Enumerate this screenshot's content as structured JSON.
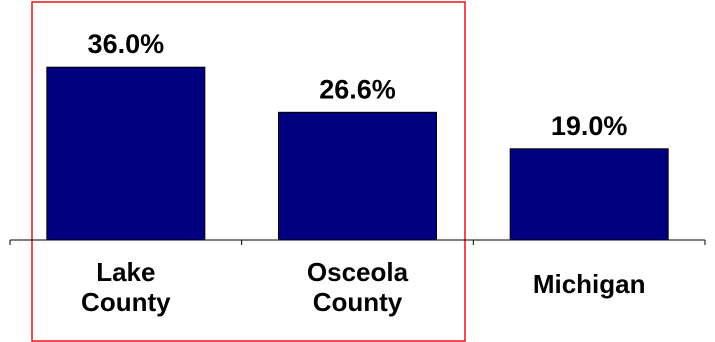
{
  "chart_data": {
    "type": "bar",
    "categories": [
      "Lake County",
      "Osceola County",
      "Michigan"
    ],
    "category_lines": [
      [
        "Lake",
        "County"
      ],
      [
        "Osceola",
        "County"
      ],
      [
        "Michigan"
      ]
    ],
    "values": [
      36.0,
      26.6,
      19.0
    ],
    "value_labels": [
      "36.0%",
      "26.6%",
      "19.0%"
    ],
    "unit": "%",
    "ylim": [
      0,
      50
    ],
    "grid": false,
    "legend": "none",
    "highlighted_categories": [
      "Lake County",
      "Osceola County"
    ],
    "colors": {
      "bar": "#000080",
      "highlight_box": "#e8141a"
    }
  }
}
